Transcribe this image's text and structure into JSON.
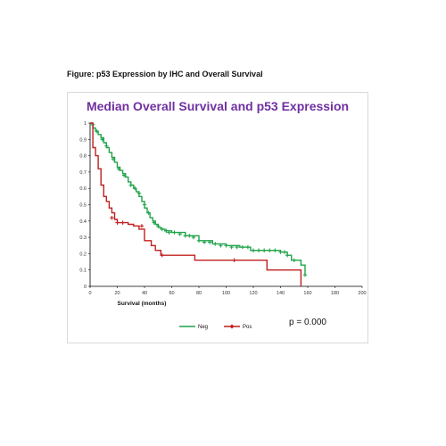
{
  "figure_caption": "Figure: p53 Expression by IHC and Overall Survival",
  "p_value": "p = 0.000",
  "colors": {
    "neg": "#1fa34a",
    "pos": "#c0201f",
    "title": "#7030a0",
    "axis": "#000000"
  },
  "chart_data": {
    "type": "line",
    "title": "Median Overall Survival and p53 Expression",
    "xlabel": "Survival (months)",
    "ylabel": "",
    "xlim": [
      0,
      200
    ],
    "ylim": [
      0,
      1
    ],
    "x_ticks": [
      0,
      20,
      40,
      60,
      80,
      100,
      120,
      140,
      160,
      180,
      200
    ],
    "y_ticks": [
      0,
      0.1,
      0.2,
      0.3,
      0.4,
      0.5,
      0.6,
      0.7,
      0.8,
      0.9,
      1
    ],
    "grid": false,
    "legend_position": "bottom",
    "series": [
      {
        "name": "Neg",
        "color": "#1fa34a",
        "step": [
          [
            0,
            1
          ],
          [
            2,
            0.97
          ],
          [
            4,
            0.95
          ],
          [
            6,
            0.93
          ],
          [
            8,
            0.91
          ],
          [
            10,
            0.88
          ],
          [
            12,
            0.85
          ],
          [
            14,
            0.82
          ],
          [
            16,
            0.79
          ],
          [
            18,
            0.76
          ],
          [
            20,
            0.73
          ],
          [
            22,
            0.71
          ],
          [
            24,
            0.69
          ],
          [
            26,
            0.67
          ],
          [
            28,
            0.64
          ],
          [
            30,
            0.62
          ],
          [
            32,
            0.6
          ],
          [
            34,
            0.58
          ],
          [
            36,
            0.55
          ],
          [
            38,
            0.52
          ],
          [
            40,
            0.48
          ],
          [
            42,
            0.45
          ],
          [
            44,
            0.42
          ],
          [
            46,
            0.4
          ],
          [
            48,
            0.38
          ],
          [
            50,
            0.36
          ],
          [
            52,
            0.35
          ],
          [
            55,
            0.34
          ],
          [
            60,
            0.33
          ],
          [
            70,
            0.31
          ],
          [
            80,
            0.28
          ],
          [
            90,
            0.26
          ],
          [
            100,
            0.25
          ],
          [
            110,
            0.24
          ],
          [
            118,
            0.22
          ],
          [
            140,
            0.21
          ],
          [
            145,
            0.19
          ],
          [
            148,
            0.16
          ],
          [
            155,
            0.13
          ],
          [
            158,
            0.07
          ]
        ],
        "censored": [
          [
            2,
            0.99
          ],
          [
            5,
            0.95
          ],
          [
            9,
            0.9
          ],
          [
            12,
            0.86
          ],
          [
            17,
            0.78
          ],
          [
            21,
            0.72
          ],
          [
            25,
            0.68
          ],
          [
            30,
            0.62
          ],
          [
            33,
            0.6
          ],
          [
            36,
            0.57
          ],
          [
            40,
            0.5
          ],
          [
            43,
            0.45
          ],
          [
            47,
            0.39
          ],
          [
            50,
            0.37
          ],
          [
            53,
            0.35
          ],
          [
            56,
            0.34
          ],
          [
            58,
            0.33
          ],
          [
            62,
            0.33
          ],
          [
            66,
            0.32
          ],
          [
            70,
            0.31
          ],
          [
            73,
            0.31
          ],
          [
            76,
            0.3
          ],
          [
            80,
            0.28
          ],
          [
            84,
            0.27
          ],
          [
            88,
            0.27
          ],
          [
            92,
            0.26
          ],
          [
            96,
            0.25
          ],
          [
            100,
            0.25
          ],
          [
            104,
            0.24
          ],
          [
            108,
            0.24
          ],
          [
            112,
            0.24
          ],
          [
            116,
            0.24
          ],
          [
            120,
            0.22
          ],
          [
            124,
            0.22
          ],
          [
            128,
            0.22
          ],
          [
            132,
            0.22
          ],
          [
            136,
            0.22
          ],
          [
            140,
            0.21
          ],
          [
            143,
            0.21
          ],
          [
            145,
            0.19
          ],
          [
            150,
            0.16
          ],
          [
            158,
            0.07
          ]
        ]
      },
      {
        "name": "Pos",
        "color": "#c0201f",
        "step": [
          [
            0,
            1
          ],
          [
            2,
            0.85
          ],
          [
            4,
            0.8
          ],
          [
            6,
            0.72
          ],
          [
            8,
            0.62
          ],
          [
            10,
            0.55
          ],
          [
            12,
            0.52
          ],
          [
            14,
            0.48
          ],
          [
            16,
            0.45
          ],
          [
            18,
            0.41
          ],
          [
            20,
            0.39
          ],
          [
            28,
            0.38
          ],
          [
            32,
            0.37
          ],
          [
            36,
            0.35
          ],
          [
            40,
            0.28
          ],
          [
            45,
            0.25
          ],
          [
            48,
            0.22
          ],
          [
            52,
            0.19
          ],
          [
            77,
            0.16
          ],
          [
            130,
            0.1
          ],
          [
            155,
            0.04
          ],
          [
            155,
            0
          ]
        ],
        "censored": [
          [
            16,
            0.42
          ],
          [
            20,
            0.39
          ],
          [
            24,
            0.39
          ],
          [
            38,
            0.37
          ],
          [
            53,
            0.19
          ],
          [
            106,
            0.16
          ]
        ]
      }
    ]
  }
}
